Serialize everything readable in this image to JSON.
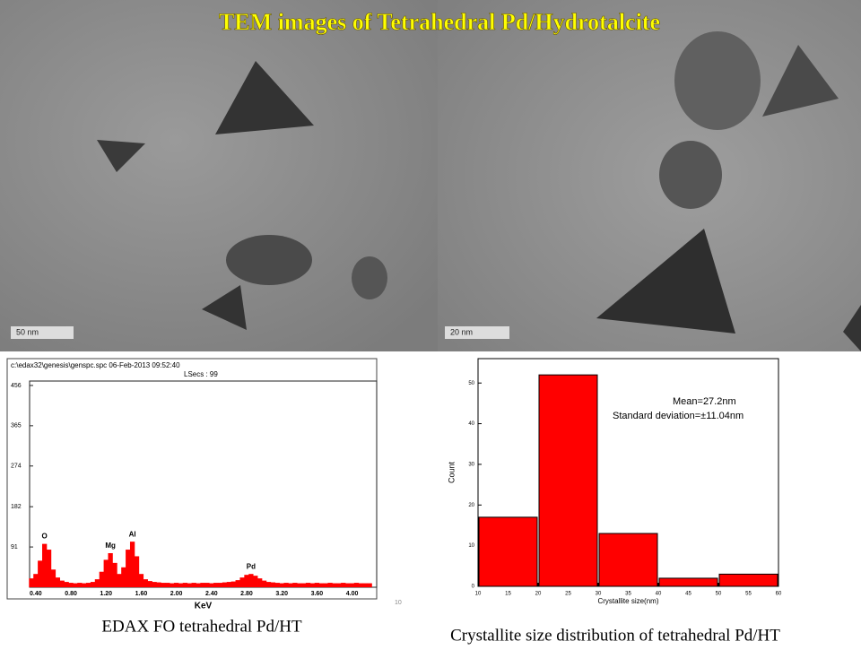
{
  "title": "TEM images of Tetrahedral Pd/Hydrotalcite",
  "tem_left": {
    "scale_label": "50 nm"
  },
  "tem_right": {
    "scale_label": "20 nm"
  },
  "page_number": "10",
  "captions": [
    "EDAX FO tetrahedral Pd/HT",
    "Crystallite size distribution of  tetrahedral Pd/HT"
  ],
  "chart_data": [
    {
      "type": "spectrum",
      "header": "c:\\edax32\\genesis\\genspc.spc 06-Feb-2013 09:52:40",
      "subheader": "LSecs : 99",
      "xlabel": "KeV",
      "color": "#ff0000",
      "x": [
        0.35,
        0.4,
        0.45,
        0.5,
        0.55,
        0.6,
        0.65,
        0.7,
        0.75,
        0.8,
        0.85,
        0.9,
        0.95,
        1,
        1.05,
        1.1,
        1.15,
        1.2,
        1.25,
        1.3,
        1.35,
        1.4,
        1.45,
        1.5,
        1.55,
        1.6,
        1.65,
        1.7,
        1.75,
        1.8,
        1.85,
        1.9,
        1.95,
        2,
        2.05,
        2.1,
        2.15,
        2.2,
        2.25,
        2.3,
        2.35,
        2.4,
        2.45,
        2.5,
        2.55,
        2.6,
        2.65,
        2.7,
        2.75,
        2.8,
        2.85,
        2.9,
        2.95,
        3,
        3.05,
        3.1,
        3.15,
        3.2,
        3.25,
        3.3,
        3.35,
        3.4,
        3.45,
        3.5,
        3.55,
        3.6,
        3.65,
        3.7,
        3.75,
        3.8,
        3.85,
        3.9,
        3.95,
        4,
        4.05,
        4.1,
        4.15,
        4.2
      ],
      "values": [
        20,
        30,
        60,
        98,
        85,
        40,
        22,
        15,
        12,
        10,
        9,
        10,
        9,
        10,
        12,
        18,
        35,
        62,
        77,
        55,
        30,
        45,
        85,
        103,
        70,
        30,
        18,
        14,
        12,
        11,
        10,
        10,
        9,
        10,
        9,
        10,
        9,
        10,
        9,
        10,
        10,
        9,
        10,
        10,
        11,
        12,
        13,
        16,
        22,
        28,
        30,
        26,
        20,
        15,
        12,
        11,
        10,
        9,
        10,
        9,
        10,
        9,
        9,
        10,
        9,
        10,
        9,
        9,
        10,
        9,
        9,
        10,
        9,
        9,
        10,
        9,
        9,
        9
      ],
      "peak_labels": [
        {
          "label": "O",
          "x": 0.5
        },
        {
          "label": "Mg",
          "x": 1.25
        },
        {
          "label": "Al",
          "x": 1.5
        },
        {
          "label": "Pd",
          "x": 2.85
        }
      ],
      "xlim": [
        0.33,
        4.28
      ],
      "ylim": [
        0,
        466
      ],
      "xticks": [
        {
          "value": 0.4,
          "label": "0.40"
        },
        {
          "value": 0.8,
          "label": "0.80"
        },
        {
          "value": 1.2,
          "label": "1.20"
        },
        {
          "value": 1.6,
          "label": "1.60"
        },
        {
          "value": 2,
          "label": "2.00"
        },
        {
          "value": 2.4,
          "label": "2.40"
        },
        {
          "value": 2.8,
          "label": "2.80"
        },
        {
          "value": 3.2,
          "label": "3.20"
        },
        {
          "value": 3.6,
          "label": "3.60"
        },
        {
          "value": 4,
          "label": "4.00"
        }
      ],
      "yticks": [
        91,
        182,
        274,
        365,
        456
      ]
    },
    {
      "type": "histogram",
      "xlabel": "Crystallite size(nm)",
      "ylabel": "Count",
      "annotations": [
        "Mean=27.2nm",
        "Standard deviation=±11.04nm"
      ],
      "color": "#ff0000",
      "bins": [
        10,
        20,
        30,
        40,
        50,
        60
      ],
      "counts": [
        17,
        52,
        13,
        2,
        3
      ],
      "xlim": [
        10,
        60
      ],
      "ylim": [
        0,
        56
      ],
      "xticks": [
        10,
        15,
        20,
        25,
        30,
        35,
        40,
        45,
        50,
        55,
        60
      ],
      "yticks": [
        0,
        10,
        20,
        30,
        40,
        50
      ]
    }
  ]
}
